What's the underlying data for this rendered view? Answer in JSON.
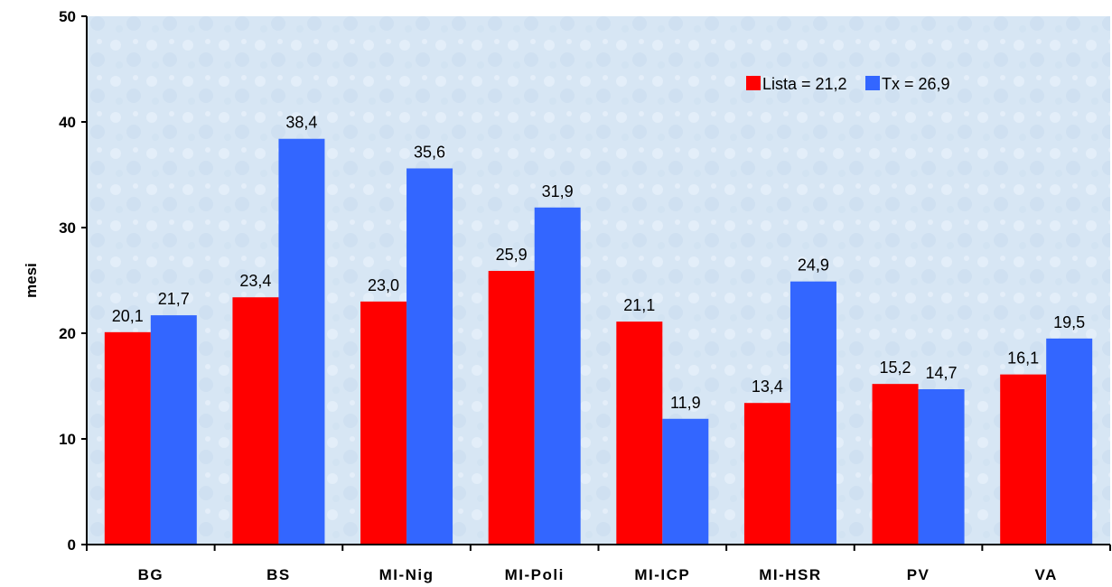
{
  "chart_data": {
    "type": "bar",
    "title": "",
    "xlabel": "",
    "ylabel": "mesi",
    "ylim": [
      0,
      50
    ],
    "yticks": [
      0,
      10,
      20,
      30,
      40,
      50
    ],
    "grid": false,
    "legend_position": "top-right",
    "categories": [
      "BG",
      "BS",
      "MI-Nig",
      "MI-Poli",
      "MI-ICP",
      "MI-HSR",
      "PV",
      "VA"
    ],
    "series": [
      {
        "name": "Lista = 21,2",
        "color": "#ff0000",
        "values": [
          20.1,
          23.4,
          23.0,
          25.9,
          21.1,
          13.4,
          15.2,
          16.1
        ],
        "labels": [
          "20,1",
          "23,4",
          "23,0",
          "25,9",
          "21,1",
          "13,4",
          "15,2",
          "16,1"
        ]
      },
      {
        "name": "Tx = 26,9",
        "color": "#3366ff",
        "values": [
          21.7,
          38.4,
          35.6,
          31.9,
          11.9,
          24.9,
          14.7,
          19.5
        ],
        "labels": [
          "21,7",
          "38,4",
          "35,6",
          "31,9",
          "11,9",
          "24,9",
          "14,7",
          "19,5"
        ]
      }
    ],
    "plot_background": "#d7e6f4"
  }
}
